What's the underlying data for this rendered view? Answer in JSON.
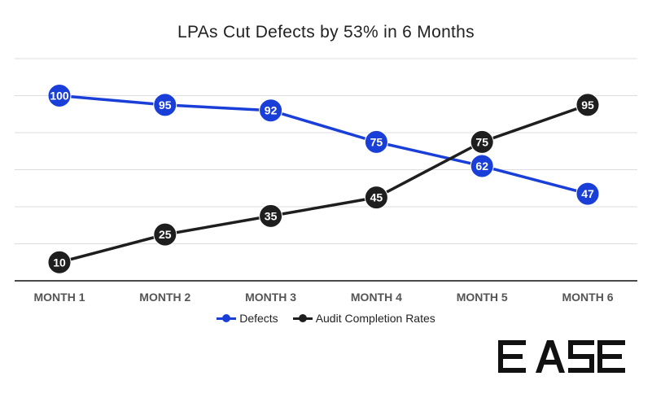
{
  "chart_data": {
    "type": "line",
    "title": "LPAs Cut Defects by 53% in 6 Months",
    "categories": [
      "MONTH 1",
      "MONTH 2",
      "MONTH 3",
      "MONTH 4",
      "MONTH 5",
      "MONTH 6"
    ],
    "series": [
      {
        "name": "Defects",
        "values": [
          100,
          95,
          92,
          75,
          62,
          47
        ],
        "color": "#1a3fd8"
      },
      {
        "name": "Audit Completion Rates",
        "values": [
          10,
          25,
          35,
          45,
          75,
          95
        ],
        "color": "#1e1e1e"
      }
    ],
    "ylim": [
      0,
      120
    ],
    "grid": true,
    "y_tick_labels_shown": false,
    "data_labels": true,
    "legend_position": "bottom"
  },
  "brand": {
    "logo_text": "EASE"
  }
}
